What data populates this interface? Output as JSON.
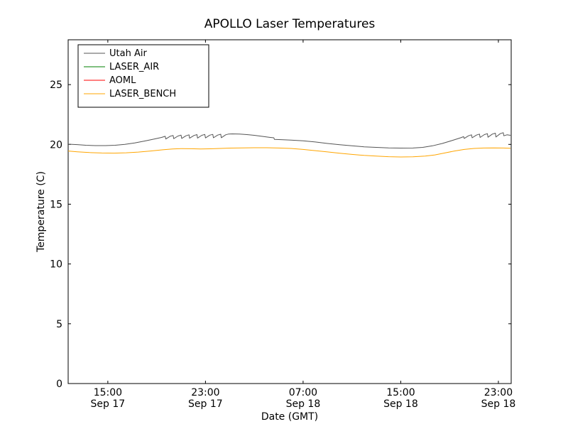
{
  "chart_data": {
    "type": "line",
    "title": "APOLLO Laser Temperatures",
    "xlabel": "Date (GMT)",
    "ylabel": "Temperature (C)",
    "grid": false,
    "legend_position": "upper left",
    "x_unit": "hours since Sep 17 00:00 GMT",
    "xlim": [
      11.75,
      48.05
    ],
    "ylim": [
      0,
      28.75
    ],
    "yticks": [
      0,
      5,
      10,
      15,
      20,
      25
    ],
    "xticks": [
      {
        "value": 15,
        "label": "15:00",
        "sublabel": "Sep 17"
      },
      {
        "value": 23,
        "label": "23:00",
        "sublabel": "Sep 17"
      },
      {
        "value": 31,
        "label": "07:00",
        "sublabel": "Sep 18"
      },
      {
        "value": 39,
        "label": "15:00",
        "sublabel": "Sep 18"
      },
      {
        "value": 47,
        "label": "23:00",
        "sublabel": "Sep 18"
      }
    ],
    "series": [
      {
        "name": "Utah Air",
        "color": "#555555",
        "points": [
          [
            11.75,
            20.02
          ],
          [
            12.5,
            19.98
          ],
          [
            13.2,
            19.93
          ],
          [
            14.0,
            19.9
          ],
          [
            14.8,
            19.9
          ],
          [
            15.6,
            19.93
          ],
          [
            16.4,
            20.0
          ],
          [
            17.2,
            20.12
          ],
          [
            18.0,
            20.28
          ],
          [
            18.8,
            20.45
          ],
          [
            19.4,
            20.58
          ],
          [
            19.7,
            20.68
          ],
          [
            19.75,
            20.45
          ],
          [
            20.1,
            20.68
          ],
          [
            20.35,
            20.75
          ],
          [
            20.4,
            20.48
          ],
          [
            20.75,
            20.7
          ],
          [
            21.0,
            20.78
          ],
          [
            21.05,
            20.5
          ],
          [
            21.4,
            20.72
          ],
          [
            21.65,
            20.8
          ],
          [
            21.7,
            20.52
          ],
          [
            22.05,
            20.74
          ],
          [
            22.3,
            20.82
          ],
          [
            22.35,
            20.53
          ],
          [
            22.7,
            20.76
          ],
          [
            22.95,
            20.83
          ],
          [
            23.0,
            20.54
          ],
          [
            23.35,
            20.77
          ],
          [
            23.6,
            20.84
          ],
          [
            23.65,
            20.55
          ],
          [
            24.0,
            20.78
          ],
          [
            24.25,
            20.85
          ],
          [
            24.3,
            20.56
          ],
          [
            24.65,
            20.8
          ],
          [
            24.9,
            20.87
          ],
          [
            25.2,
            20.88
          ],
          [
            25.8,
            20.86
          ],
          [
            26.4,
            20.82
          ],
          [
            27.0,
            20.76
          ],
          [
            27.6,
            20.68
          ],
          [
            28.2,
            20.6
          ],
          [
            28.6,
            20.55
          ],
          [
            28.65,
            20.42
          ],
          [
            29.2,
            20.4
          ],
          [
            30.0,
            20.36
          ],
          [
            31.0,
            20.3
          ],
          [
            32.0,
            20.2
          ],
          [
            33.0,
            20.08
          ],
          [
            34.0,
            19.97
          ],
          [
            35.0,
            19.88
          ],
          [
            36.0,
            19.8
          ],
          [
            37.0,
            19.75
          ],
          [
            38.0,
            19.71
          ],
          [
            39.0,
            19.69
          ],
          [
            40.0,
            19.7
          ],
          [
            40.8,
            19.75
          ],
          [
            41.6,
            19.88
          ],
          [
            42.4,
            20.08
          ],
          [
            43.2,
            20.32
          ],
          [
            43.9,
            20.55
          ],
          [
            44.15,
            20.65
          ],
          [
            44.2,
            20.5
          ],
          [
            44.55,
            20.72
          ],
          [
            44.8,
            20.8
          ],
          [
            44.85,
            20.55
          ],
          [
            45.2,
            20.78
          ],
          [
            45.45,
            20.86
          ],
          [
            45.5,
            20.58
          ],
          [
            45.85,
            20.82
          ],
          [
            46.1,
            20.9
          ],
          [
            46.15,
            20.6
          ],
          [
            46.5,
            20.86
          ],
          [
            46.75,
            20.94
          ],
          [
            46.8,
            20.62
          ],
          [
            47.15,
            20.9
          ],
          [
            47.4,
            20.98
          ],
          [
            47.45,
            20.72
          ],
          [
            47.7,
            20.8
          ],
          [
            48.0,
            20.76
          ]
        ]
      },
      {
        "name": "LASER_AIR",
        "color": "#008000",
        "points": []
      },
      {
        "name": "AOML",
        "color": "#ff0000",
        "points": []
      },
      {
        "name": "LASER_BENCH",
        "color": "#ffa500",
        "points": [
          [
            11.75,
            19.45
          ],
          [
            12.5,
            19.38
          ],
          [
            13.5,
            19.32
          ],
          [
            14.5,
            19.28
          ],
          [
            15.5,
            19.27
          ],
          [
            16.5,
            19.3
          ],
          [
            17.5,
            19.36
          ],
          [
            18.5,
            19.45
          ],
          [
            19.5,
            19.55
          ],
          [
            20.3,
            19.62
          ],
          [
            21.0,
            19.65
          ],
          [
            21.8,
            19.64
          ],
          [
            22.6,
            19.62
          ],
          [
            23.4,
            19.63
          ],
          [
            24.2,
            19.66
          ],
          [
            25.0,
            19.69
          ],
          [
            26.0,
            19.71
          ],
          [
            27.0,
            19.72
          ],
          [
            28.0,
            19.72
          ],
          [
            29.0,
            19.7
          ],
          [
            30.0,
            19.66
          ],
          [
            31.0,
            19.58
          ],
          [
            32.0,
            19.48
          ],
          [
            33.0,
            19.37
          ],
          [
            34.0,
            19.26
          ],
          [
            35.0,
            19.16
          ],
          [
            36.0,
            19.08
          ],
          [
            37.0,
            19.02
          ],
          [
            38.0,
            18.97
          ],
          [
            39.0,
            18.95
          ],
          [
            40.0,
            18.96
          ],
          [
            41.0,
            19.02
          ],
          [
            41.8,
            19.12
          ],
          [
            42.6,
            19.28
          ],
          [
            43.4,
            19.45
          ],
          [
            44.2,
            19.58
          ],
          [
            45.0,
            19.66
          ],
          [
            45.8,
            19.7
          ],
          [
            46.6,
            19.71
          ],
          [
            47.4,
            19.7
          ],
          [
            48.0,
            19.68
          ]
        ]
      }
    ]
  }
}
